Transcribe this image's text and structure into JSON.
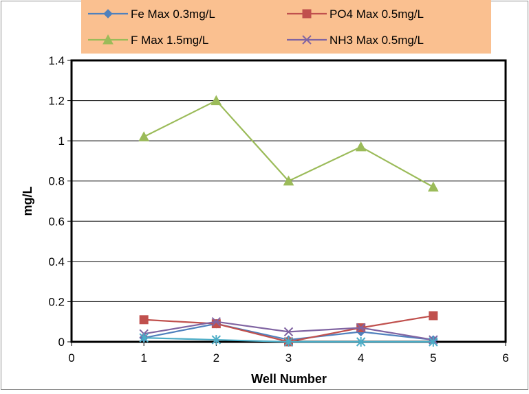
{
  "chart_data": {
    "type": "line",
    "title": "",
    "xlabel": "Well Number",
    "ylabel": "mg/L",
    "xlim": [
      0,
      6
    ],
    "ylim": [
      0,
      1.4
    ],
    "x_ticks": [
      "0",
      "1",
      "2",
      "3",
      "4",
      "5",
      "6"
    ],
    "y_ticks": [
      "0",
      "0.2",
      "0.4",
      "0.6",
      "0.8",
      "1",
      "1.2",
      "1.4"
    ],
    "grid": "horizontal",
    "legend_position": "top",
    "legend_background": "#FAC090",
    "series": [
      {
        "name": "Fe Max 0.3mg/L",
        "marker": "diamond",
        "color": "#4F81BD",
        "x": [
          1,
          2,
          3,
          4,
          5
        ],
        "y": [
          0.02,
          0.09,
          0.01,
          0.05,
          0.01
        ]
      },
      {
        "name": "PO4 Max 0.5mg/L",
        "marker": "square",
        "color": "#C0504D",
        "x": [
          1,
          2,
          3,
          4,
          5
        ],
        "y": [
          0.11,
          0.09,
          0.0,
          0.07,
          0.13
        ]
      },
      {
        "name": "F Max 1.5mg/L",
        "marker": "triangle",
        "color": "#9BBB59",
        "x": [
          1,
          2,
          3,
          4,
          5
        ],
        "y": [
          1.02,
          1.2,
          0.8,
          0.97,
          0.77
        ]
      },
      {
        "name": "NH3 Max 0.5mg/L",
        "marker": "x",
        "color": "#8064A2",
        "x": [
          1,
          2,
          3,
          4,
          5
        ],
        "y": [
          0.04,
          0.1,
          0.05,
          0.07,
          0.01
        ]
      },
      {
        "marker": "asterisk",
        "color": "#4BACC6",
        "x": [
          1,
          2,
          3,
          4,
          5
        ],
        "y": [
          0.02,
          0.01,
          0.0,
          0.0,
          0.0
        ]
      }
    ]
  }
}
